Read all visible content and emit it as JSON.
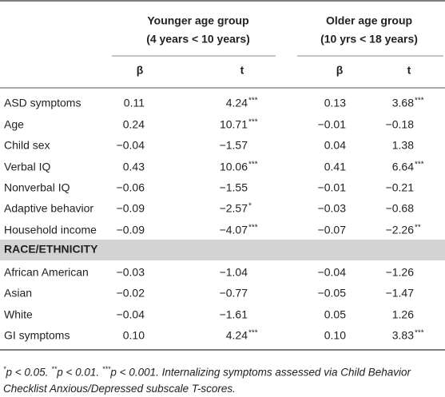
{
  "table": {
    "groups": [
      {
        "title": "Younger age group",
        "range": "(4 years < 10 years)"
      },
      {
        "title": "Older age group",
        "range": "(10 yrs < 18 years)"
      }
    ],
    "subheaders": [
      "β",
      "t",
      "β",
      "t"
    ],
    "rows": [
      {
        "label": "ASD symptoms",
        "cells": [
          {
            "text": "0.11"
          },
          {
            "text": "4.24",
            "sig": "***"
          },
          {
            "text": "0.13"
          },
          {
            "text": "3.68",
            "sig": "***"
          }
        ]
      },
      {
        "label": "Age",
        "cells": [
          {
            "text": "0.24"
          },
          {
            "text": "10.71",
            "sig": "***"
          },
          {
            "text": "−0.01"
          },
          {
            "text": "−0.18"
          }
        ]
      },
      {
        "label": "Child sex",
        "cells": [
          {
            "text": "−0.04"
          },
          {
            "text": "−1.57"
          },
          {
            "text": "0.04"
          },
          {
            "text": "1.38"
          }
        ]
      },
      {
        "label": "Verbal IQ",
        "cells": [
          {
            "text": "0.43"
          },
          {
            "text": "10.06",
            "sig": "***"
          },
          {
            "text": "0.41"
          },
          {
            "text": "6.64",
            "sig": "***"
          }
        ]
      },
      {
        "label": "Nonverbal IQ",
        "cells": [
          {
            "text": "−0.06"
          },
          {
            "text": "−1.55"
          },
          {
            "text": "−0.01"
          },
          {
            "text": "−0.21"
          }
        ]
      },
      {
        "label": "Adaptive behavior",
        "cells": [
          {
            "text": "−0.09"
          },
          {
            "text": "−2.57",
            "sig": "*"
          },
          {
            "text": "−0.03"
          },
          {
            "text": "−0.68"
          }
        ]
      },
      {
        "label": "Household income",
        "cells": [
          {
            "text": "−0.09"
          },
          {
            "text": "−4.07",
            "sig": "***"
          },
          {
            "text": "−0.07"
          },
          {
            "text": "−2.26",
            "sig": "**"
          }
        ]
      }
    ],
    "section": "RACE/ETHNICITY",
    "section_rows": [
      {
        "label": "African American",
        "cells": [
          {
            "text": "−0.03"
          },
          {
            "text": "−1.04"
          },
          {
            "text": "−0.04"
          },
          {
            "text": "−1.26"
          }
        ]
      },
      {
        "label": "Asian",
        "cells": [
          {
            "text": "−0.02"
          },
          {
            "text": "−0.77"
          },
          {
            "text": "−0.05"
          },
          {
            "text": "−1.47"
          }
        ]
      },
      {
        "label": "White",
        "cells": [
          {
            "text": "−0.04"
          },
          {
            "text": "−1.61"
          },
          {
            "text": "0.05"
          },
          {
            "text": "1.26"
          }
        ]
      },
      {
        "label": "GI symptoms",
        "cells": [
          {
            "text": "0.10"
          },
          {
            "text": "4.24",
            "sig": "***"
          },
          {
            "text": "0.10"
          },
          {
            "text": "3.83",
            "sig": "***"
          }
        ]
      }
    ],
    "footnote": {
      "levels": [
        {
          "sup": "*",
          "text": "p < 0.05."
        },
        {
          "sup": "**",
          "text": "p < 0.01."
        },
        {
          "sup": "***",
          "text": "p < 0.001."
        }
      ],
      "note": "Internalizing symptoms assessed via Child Behavior Checklist Anxious/Depressed subscale T-scores."
    }
  }
}
